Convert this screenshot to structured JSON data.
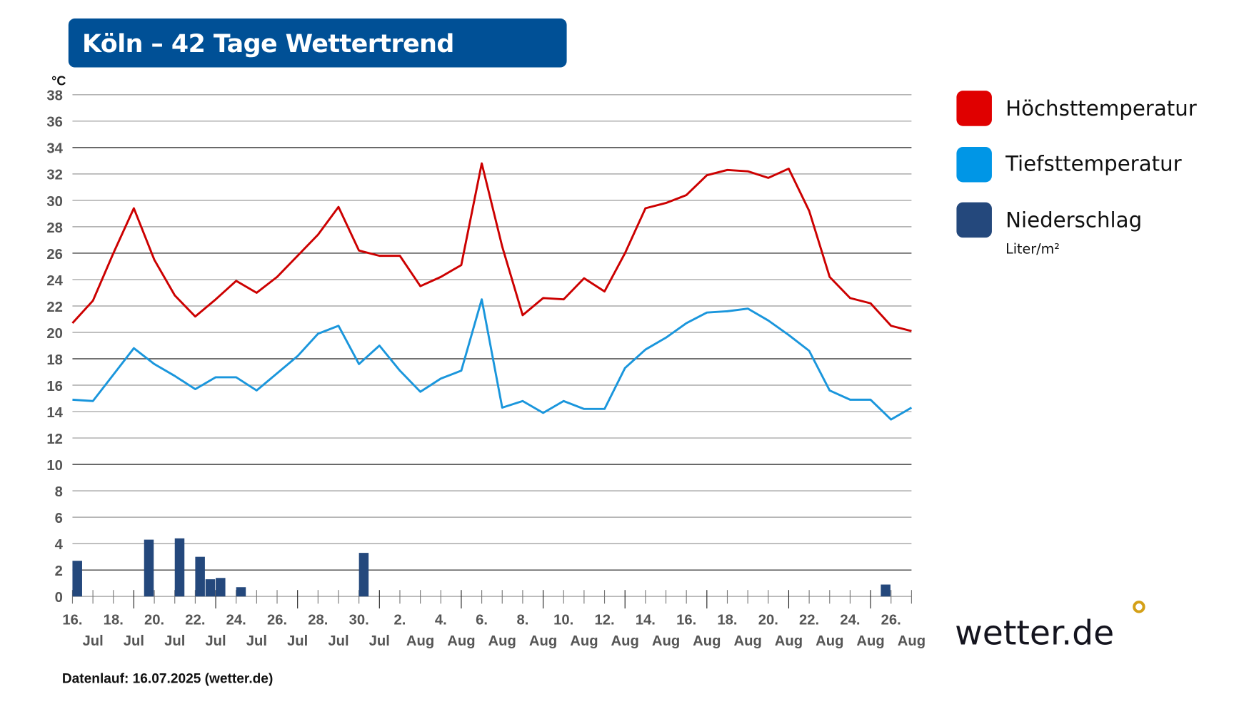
{
  "title": "Köln – 42 Tage Wettertrend",
  "footer": "Datenlauf: 16.07.2025 (wetter.de)",
  "logo": "wetter.de",
  "legend": {
    "max": "Höchsttemperatur",
    "min": "Tiefsttemperatur",
    "precip": "Niederschlag",
    "precip_unit": "Liter/m²"
  },
  "colors": {
    "title_bg": "#005096",
    "max": "#e00000",
    "min": "#0096e6",
    "max_line": "#cc0000",
    "min_line": "#1a96dc",
    "precip": "#24487c",
    "logo_dot": "#d4a017"
  },
  "chart_data": {
    "type": "line",
    "ylabel": "°C",
    "ylim": [
      0,
      38
    ],
    "yticks": [
      0,
      2,
      4,
      6,
      8,
      10,
      12,
      14,
      16,
      18,
      20,
      22,
      24,
      26,
      28,
      30,
      32,
      34,
      36,
      38
    ],
    "grid": true,
    "legend_placement": "right",
    "x": [
      "16.07.",
      "17.07.",
      "18.07.",
      "19.07.",
      "20.07.",
      "21.07.",
      "22.07.",
      "23.07.",
      "24.07.",
      "25.07.",
      "26.07.",
      "27.07.",
      "28.07.",
      "29.07.",
      "30.07.",
      "31.07.",
      "01.08.",
      "02.08.",
      "03.08.",
      "04.08.",
      "05.08.",
      "06.08.",
      "07.08.",
      "08.08.",
      "09.08.",
      "10.08.",
      "11.08.",
      "12.08.",
      "13.08.",
      "14.08.",
      "15.08.",
      "16.08.",
      "17.08.",
      "18.08.",
      "19.08.",
      "20.08.",
      "21.08.",
      "22.08.",
      "23.08.",
      "24.08.",
      "25.08.",
      "26.08."
    ],
    "xtick_days": [
      "16.",
      "18.",
      "20.",
      "22.",
      "24.",
      "26.",
      "28.",
      "30.",
      "2.",
      "4.",
      "6.",
      "8.",
      "10.",
      "12.",
      "14.",
      "16.",
      "18.",
      "20.",
      "22.",
      "24.",
      "26."
    ],
    "xtick_months": [
      "Jul",
      "Jul",
      "Jul",
      "Jul",
      "Jul",
      "Jul",
      "Jul",
      "Jul",
      "Aug",
      "Aug",
      "Aug",
      "Aug",
      "Aug",
      "Aug",
      "Aug",
      "Aug",
      "Aug",
      "Aug",
      "Aug",
      "Aug",
      "Aug"
    ],
    "series": [
      {
        "name": "Höchsttemperatur",
        "type": "line",
        "values": [
          20.7,
          22.4,
          26.0,
          29.4,
          25.5,
          22.8,
          21.2,
          22.5,
          23.9,
          23.0,
          24.2,
          25.8,
          27.4,
          29.5,
          26.2,
          25.8,
          25.8,
          23.5,
          24.2,
          25.1,
          32.8,
          26.5,
          21.3,
          22.6,
          22.5,
          24.1,
          23.1,
          26.0,
          29.4,
          29.8,
          30.4,
          31.9,
          32.3,
          32.2,
          31.7,
          32.4,
          29.2,
          24.2,
          22.6,
          22.2,
          20.5,
          20.1
        ]
      },
      {
        "name": "Tiefsttemperatur",
        "type": "line",
        "values": [
          14.9,
          14.8,
          16.8,
          18.8,
          17.6,
          16.7,
          15.7,
          16.6,
          16.6,
          15.6,
          16.9,
          18.2,
          19.9,
          20.5,
          17.6,
          19.0,
          17.1,
          15.5,
          16.5,
          17.1,
          22.5,
          14.3,
          14.8,
          13.9,
          14.8,
          14.2,
          14.2,
          17.3,
          18.7,
          19.6,
          20.7,
          21.5,
          21.6,
          21.8,
          20.9,
          19.8,
          18.6,
          15.6,
          14.9,
          14.9,
          13.4,
          14.3
        ]
      },
      {
        "name": "Niederschlag",
        "type": "bar",
        "unit": "Liter/m²",
        "values": [
          {
            "date": "16.07.",
            "half": "AM",
            "value": 2.7
          },
          {
            "date": "19.07.",
            "half": "PM",
            "value": 4.3
          },
          {
            "date": "21.07.",
            "half": "AM",
            "value": 4.4
          },
          {
            "date": "22.07.",
            "half": "AM",
            "value": 3.0
          },
          {
            "date": "22.07.",
            "half": "PM",
            "value": 1.3
          },
          {
            "date": "23.07.",
            "half": "AM",
            "value": 1.4
          },
          {
            "date": "24.07.",
            "half": "AM",
            "value": 0.7
          },
          {
            "date": "30.07.",
            "half": "AM",
            "value": 3.3
          },
          {
            "date": "24.08.",
            "half": "PM",
            "value": 0.9
          }
        ]
      }
    ]
  }
}
